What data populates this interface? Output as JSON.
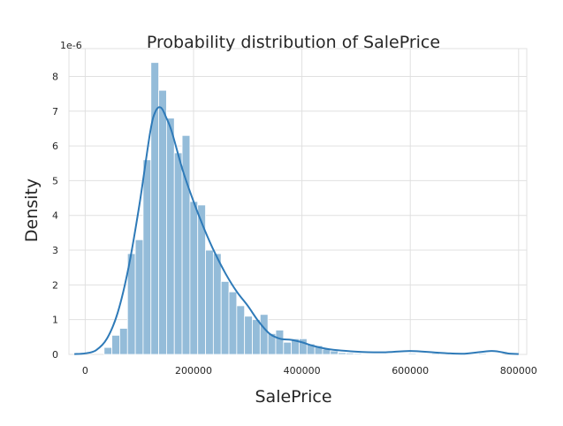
{
  "chart_data": {
    "type": "histogram",
    "title": "Probability distribution of SalePrice",
    "xlabel": "SalePrice",
    "ylabel": "Density",
    "y_offset_text": "1e-6",
    "xlim": [
      -30000,
      815000
    ],
    "ylim": [
      0,
      8.8
    ],
    "grid": true,
    "colors": {
      "bar": "#94bcd9",
      "bar_edge": "#ffffff",
      "kde": "#2e7ab8",
      "grid": "#e0e0e0",
      "text": "#262626"
    },
    "xticks": [
      0,
      200000,
      400000,
      600000,
      800000
    ],
    "xtick_labels": [
      "0",
      "200000",
      "400000",
      "600000",
      "800000"
    ],
    "yticks": [
      0,
      1,
      2,
      3,
      4,
      5,
      6,
      7,
      8
    ],
    "ytick_labels": [
      "0",
      "1",
      "2",
      "3",
      "4",
      "5",
      "6",
      "7",
      "8"
    ],
    "histogram": {
      "bin_start": 34900,
      "bin_width": 14400,
      "densities": [
        0.2,
        0.55,
        0.75,
        2.9,
        3.3,
        5.6,
        8.4,
        7.6,
        6.8,
        5.8,
        6.3,
        4.4,
        4.3,
        3.0,
        2.9,
        2.1,
        1.8,
        1.4,
        1.1,
        1.0,
        1.15,
        0.6,
        0.7,
        0.35,
        0.45,
        0.45,
        0.3,
        0.25,
        0.15,
        0.1,
        0.05,
        0.04,
        0.03,
        0.02,
        0.02,
        0.02,
        0.02,
        0.02,
        0.02,
        0.03,
        0.02,
        0.02,
        0.03,
        0.02,
        0.02,
        0.02,
        0.02,
        0.02,
        0.03,
        0.02,
        0.02
      ]
    },
    "kde": {
      "x": [
        -20000,
        0,
        20000,
        40000,
        60000,
        80000,
        100000,
        120000,
        130000,
        140000,
        150000,
        160000,
        180000,
        200000,
        220000,
        240000,
        260000,
        280000,
        300000,
        320000,
        340000,
        360000,
        380000,
        400000,
        420000,
        450000,
        500000,
        550000,
        600000,
        650000,
        700000,
        750000,
        780000,
        800000
      ],
      "y": [
        0.01,
        0.03,
        0.12,
        0.45,
        1.2,
        2.5,
        4.3,
        6.4,
        7.0,
        7.1,
        6.8,
        6.4,
        5.3,
        4.4,
        3.6,
        2.9,
        2.3,
        1.8,
        1.4,
        0.95,
        0.6,
        0.45,
        0.42,
        0.35,
        0.25,
        0.15,
        0.08,
        0.06,
        0.1,
        0.05,
        0.02,
        0.1,
        0.03,
        0.01
      ]
    }
  }
}
